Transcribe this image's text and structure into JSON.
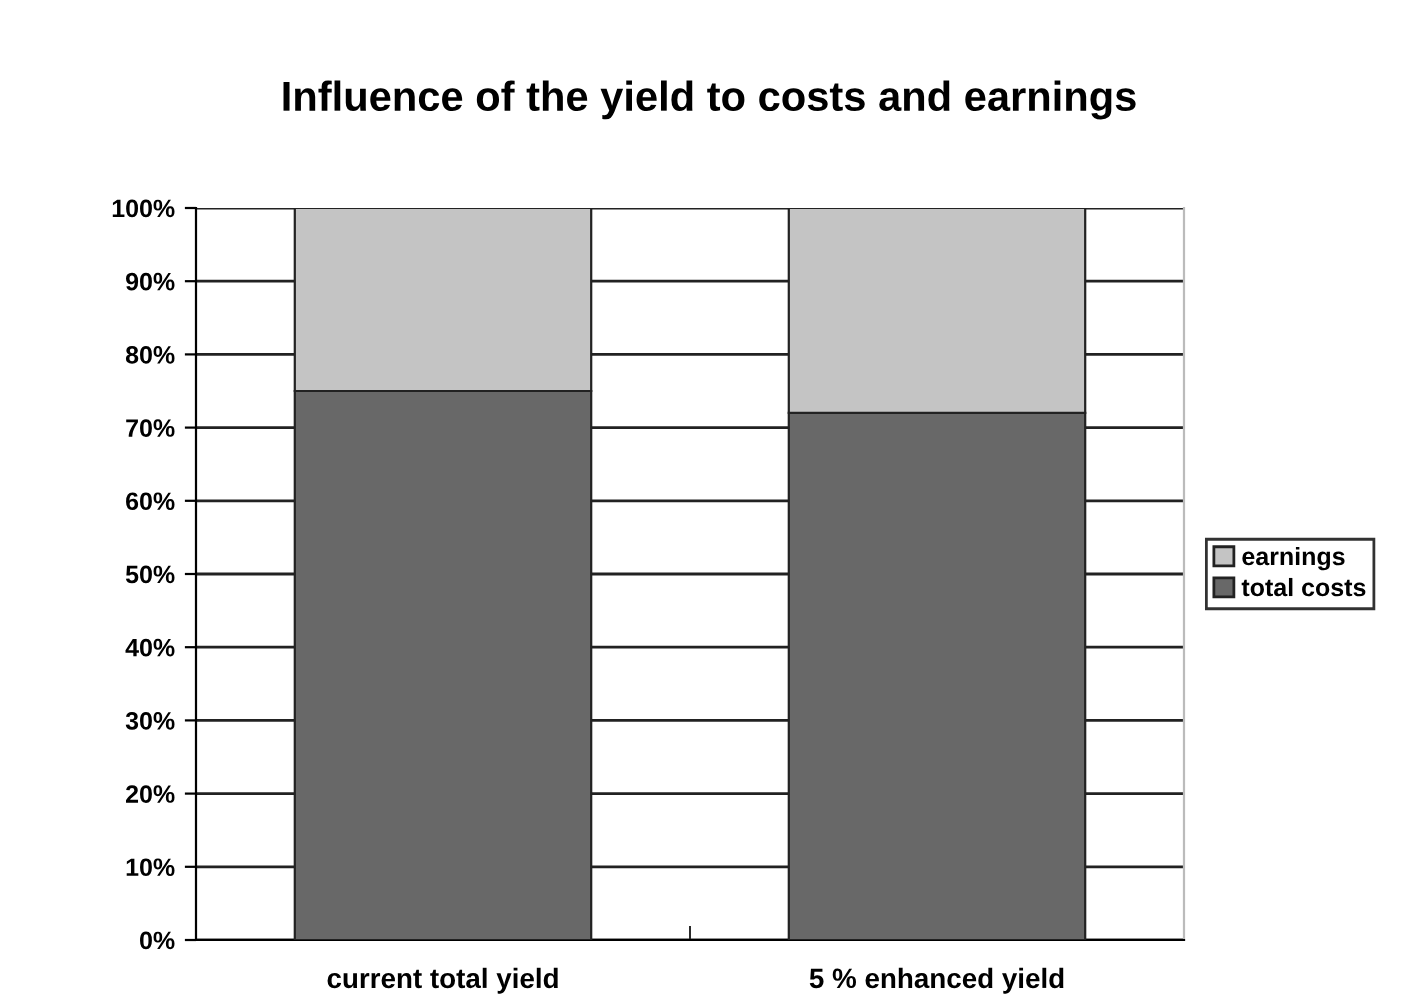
{
  "chart_data": {
    "type": "bar",
    "title": "Influence of the yield to costs and earnings",
    "categories": [
      "current total yield",
      "5 % enhanced yield"
    ],
    "stacked": true,
    "series": [
      {
        "name": "total costs",
        "color": "#686868",
        "values": [
          75,
          72
        ]
      },
      {
        "name": "earnings",
        "color": "#c4c4c4",
        "values": [
          25,
          28
        ]
      }
    ],
    "ylim": [
      0,
      100
    ],
    "yticks": [
      {
        "value": 0,
        "label": "0%"
      },
      {
        "value": 10,
        "label": "10%"
      },
      {
        "value": 20,
        "label": "20%"
      },
      {
        "value": 30,
        "label": "30%"
      },
      {
        "value": 40,
        "label": "40%"
      },
      {
        "value": 50,
        "label": "50%"
      },
      {
        "value": 60,
        "label": "60%"
      },
      {
        "value": 70,
        "label": "70%"
      },
      {
        "value": 80,
        "label": "80%"
      },
      {
        "value": 90,
        "label": "90%"
      },
      {
        "value": 100,
        "label": "100%"
      }
    ],
    "grid": "y",
    "legend": "right"
  }
}
